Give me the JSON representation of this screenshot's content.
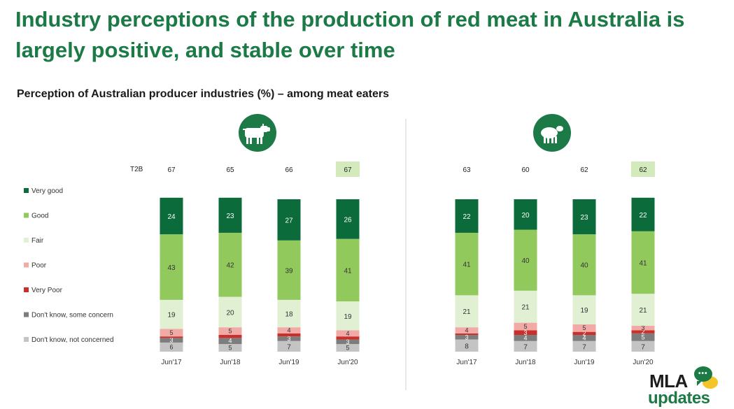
{
  "title": "Industry perceptions of the production of red meat in Australia is largely positive, and stable over time",
  "subtitle": "Perception of Australian producer industries (%) – among meat eaters",
  "t2b_label": "T2B",
  "icons": [
    "cattle-icon",
    "sheep-icon"
  ],
  "brand": {
    "line1": "MLA",
    "line2": "updates"
  },
  "colors": {
    "very_good": "#0b6b3a",
    "good": "#92c95d",
    "fair": "#e1efd3",
    "poor": "#f2aaa6",
    "very_poor": "#c9302c",
    "dk_concern": "#7d7d7d",
    "dk_not": "#c4c4c4",
    "t2b_highlight": "#d3eabd",
    "title": "#1b7a45"
  },
  "chart_data": [
    {
      "type": "stacked-bar",
      "icon": "cattle-icon",
      "categories": [
        "Jun'17",
        "Jun'18",
        "Jun'19",
        "Jun'20"
      ],
      "t2b": [
        67,
        65,
        66,
        67
      ],
      "t2b_highlight_index": 3,
      "series": [
        {
          "name": "Don't know, not concerned",
          "key": "dk_not",
          "values": [
            6,
            5,
            7,
            5
          ]
        },
        {
          "name": "Don't know, some concern",
          "key": "dk_concern",
          "values": [
            3,
            4,
            3,
            3
          ]
        },
        {
          "name": "Very Poor",
          "key": "very_poor",
          "values": [
            1,
            2,
            2,
            2
          ]
        },
        {
          "name": "Poor",
          "key": "poor",
          "values": [
            5,
            5,
            4,
            4
          ]
        },
        {
          "name": "Fair",
          "key": "fair",
          "values": [
            19,
            20,
            18,
            19
          ]
        },
        {
          "name": "Good",
          "key": "good",
          "values": [
            43,
            42,
            39,
            41
          ]
        },
        {
          "name": "Very good",
          "key": "very_good",
          "values": [
            24,
            23,
            27,
            26
          ]
        }
      ],
      "data_labels": {
        "dk_not": [
          "6",
          "5",
          "7",
          "5"
        ],
        "dk_concern": [
          "3",
          "4",
          "3",
          "3"
        ],
        "very_poor": [
          "",
          "",
          "",
          ""
        ],
        "poor": [
          "5",
          "5",
          "4",
          "4"
        ],
        "fair": [
          "19",
          "20",
          "18",
          "19"
        ],
        "good": [
          "43",
          "42",
          "39",
          "41"
        ],
        "very_good": [
          "24",
          "23",
          "27",
          "26"
        ]
      }
    },
    {
      "type": "stacked-bar",
      "icon": "sheep-icon",
      "categories": [
        "Jun'17",
        "Jun'18",
        "Jun'19",
        "Jun'20"
      ],
      "t2b": [
        63,
        60,
        62,
        62
      ],
      "t2b_highlight_index": 3,
      "series": [
        {
          "name": "Don't know, not concerned",
          "key": "dk_not",
          "values": [
            8,
            7,
            7,
            7
          ]
        },
        {
          "name": "Don't know, some concern",
          "key": "dk_concern",
          "values": [
            3,
            4,
            4,
            5
          ]
        },
        {
          "name": "Very Poor",
          "key": "very_poor",
          "values": [
            1,
            3,
            2,
            2
          ]
        },
        {
          "name": "Poor",
          "key": "poor",
          "values": [
            4,
            5,
            5,
            3
          ]
        },
        {
          "name": "Fair",
          "key": "fair",
          "values": [
            21,
            21,
            19,
            21
          ]
        },
        {
          "name": "Good",
          "key": "good",
          "values": [
            41,
            40,
            40,
            41
          ]
        },
        {
          "name": "Very good",
          "key": "very_good",
          "values": [
            22,
            20,
            23,
            22
          ]
        }
      ],
      "data_labels": {
        "dk_not": [
          "8",
          "7",
          "7",
          "7"
        ],
        "dk_concern": [
          "3",
          "4",
          "4",
          "5"
        ],
        "very_poor": [
          "",
          "3",
          "2",
          "2"
        ],
        "poor": [
          "4",
          "5",
          "5",
          "3"
        ],
        "fair": [
          "21",
          "21",
          "19",
          "21"
        ],
        "good": [
          "41",
          "40",
          "40",
          "41"
        ],
        "very_good": [
          "22",
          "20",
          "23",
          "22"
        ]
      }
    }
  ],
  "legend": [
    {
      "key": "very_good",
      "label": "Very good"
    },
    {
      "key": "good",
      "label": "Good"
    },
    {
      "key": "fair",
      "label": "Fair"
    },
    {
      "key": "poor",
      "label": "Poor"
    },
    {
      "key": "very_poor",
      "label": "Very Poor"
    },
    {
      "key": "dk_concern",
      "label": "Don't know, some concern"
    },
    {
      "key": "dk_not",
      "label": "Don't know, not concerned"
    }
  ]
}
